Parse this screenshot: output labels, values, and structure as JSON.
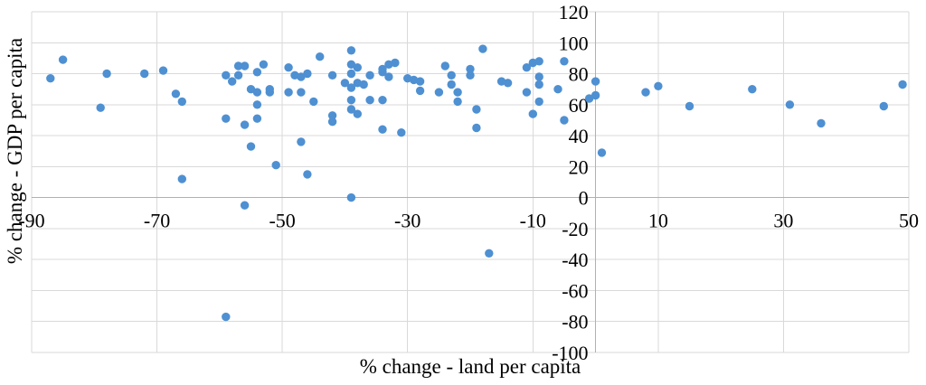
{
  "chart_data": {
    "type": "scatter",
    "title": "",
    "xlabel": "% change - land per capita",
    "ylabel": "% change - GDP per capita",
    "x_axis": {
      "min": -90,
      "max": 50,
      "tick_step": 20,
      "ticks": [
        -90,
        -70,
        -50,
        -30,
        -10,
        10,
        30,
        50
      ]
    },
    "y_axis": {
      "min": -100,
      "max": 120,
      "tick_step": 20,
      "ticks": [
        120,
        100,
        80,
        60,
        40,
        20,
        0,
        -20,
        -40,
        -60,
        -80,
        -100
      ]
    },
    "grid": true,
    "legend": "none",
    "marker": {
      "shape": "circle",
      "radius_px": 4.7
    },
    "colors": {
      "point": "#4E90D2",
      "gridline": "#D9D9D9",
      "axis_line": "#A9B2BC",
      "text": "#000000",
      "background": "#FFFFFF"
    },
    "points": [
      [
        -87,
        77
      ],
      [
        -85,
        89
      ],
      [
        -79,
        58
      ],
      [
        -78,
        80
      ],
      [
        -72,
        80
      ],
      [
        -69,
        82
      ],
      [
        -67,
        67
      ],
      [
        -66,
        62
      ],
      [
        -66,
        12
      ],
      [
        -59,
        79
      ],
      [
        -59,
        51
      ],
      [
        -58,
        75
      ],
      [
        -57,
        85
      ],
      [
        -57,
        79
      ],
      [
        -56,
        85
      ],
      [
        -56,
        47
      ],
      [
        -56,
        -5
      ],
      [
        -55,
        70
      ],
      [
        -55,
        33
      ],
      [
        -54,
        81
      ],
      [
        -54,
        68
      ],
      [
        -54,
        60
      ],
      [
        -54,
        51
      ],
      [
        -53,
        86
      ],
      [
        -52,
        70
      ],
      [
        -52,
        68
      ],
      [
        -51,
        21
      ],
      [
        -59,
        -77
      ],
      [
        -49,
        84
      ],
      [
        -49,
        68
      ],
      [
        -48,
        79
      ],
      [
        -47,
        78
      ],
      [
        -47,
        68
      ],
      [
        -47,
        36
      ],
      [
        -46,
        80
      ],
      [
        -46,
        15
      ],
      [
        -45,
        62
      ],
      [
        -44,
        91
      ],
      [
        -42,
        79
      ],
      [
        -42,
        53
      ],
      [
        -42,
        49
      ],
      [
        -40,
        74
      ],
      [
        -39,
        95
      ],
      [
        -39,
        86
      ],
      [
        -39,
        80
      ],
      [
        -39,
        71
      ],
      [
        -39,
        63
      ],
      [
        -39,
        57
      ],
      [
        -39,
        0
      ],
      [
        -38,
        84
      ],
      [
        -38,
        74
      ],
      [
        -38,
        54
      ],
      [
        -37,
        73
      ],
      [
        -36,
        79
      ],
      [
        -36,
        63
      ],
      [
        -34,
        83
      ],
      [
        -34,
        81
      ],
      [
        -34,
        63
      ],
      [
        -34,
        44
      ],
      [
        -33,
        86
      ],
      [
        -33,
        78
      ],
      [
        -32,
        87
      ],
      [
        -31,
        42
      ],
      [
        -30,
        77
      ],
      [
        -29,
        76
      ],
      [
        -28,
        75
      ],
      [
        -28,
        69
      ],
      [
        -25,
        68
      ],
      [
        -24,
        85
      ],
      [
        -23,
        79
      ],
      [
        -23,
        73
      ],
      [
        -22,
        68
      ],
      [
        -22,
        62
      ],
      [
        -20,
        83
      ],
      [
        -20,
        79
      ],
      [
        -19,
        57
      ],
      [
        -19,
        45
      ],
      [
        -18,
        96
      ],
      [
        -17,
        -36
      ],
      [
        -15,
        75
      ],
      [
        -14,
        74
      ],
      [
        -11,
        84
      ],
      [
        -11,
        68
      ],
      [
        -10,
        87
      ],
      [
        -10,
        54
      ],
      [
        -9,
        88
      ],
      [
        -9,
        78
      ],
      [
        -9,
        73
      ],
      [
        -9,
        62
      ],
      [
        -6,
        70
      ],
      [
        -5,
        88
      ],
      [
        -5,
        50
      ],
      [
        -1,
        64
      ],
      [
        0,
        75
      ],
      [
        0,
        66
      ],
      [
        1,
        29
      ],
      [
        8,
        68
      ],
      [
        10,
        72
      ],
      [
        15,
        59
      ],
      [
        25,
        70
      ],
      [
        31,
        60
      ],
      [
        36,
        48
      ],
      [
        46,
        59
      ],
      [
        49,
        73
      ]
    ]
  }
}
